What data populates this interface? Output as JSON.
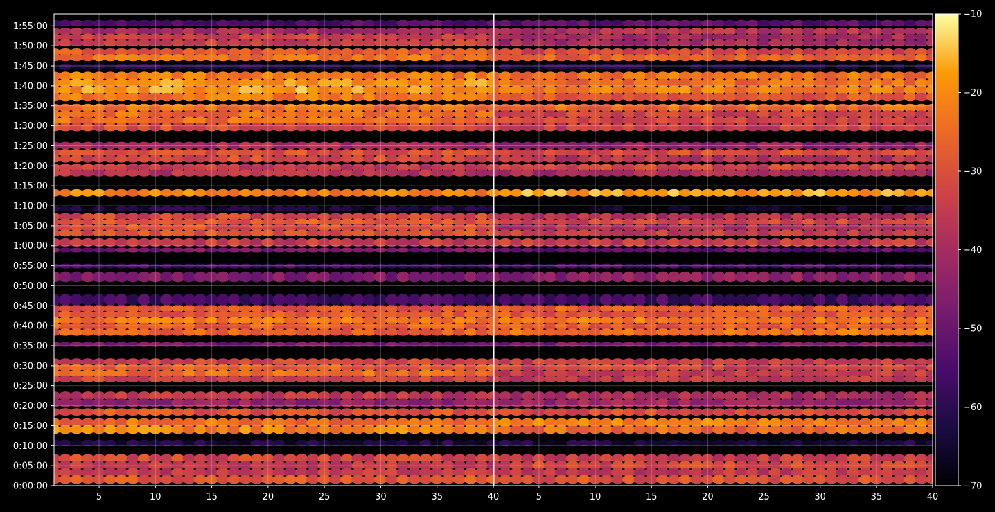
{
  "chart_data": {
    "type": "heatmap",
    "colormap": "inferno",
    "panels": 2,
    "x": {
      "range": [
        1,
        40
      ],
      "ticks": [
        5,
        10,
        15,
        20,
        25,
        30,
        35,
        40
      ],
      "tick_labels": [
        "5",
        "10",
        "15",
        "20",
        "25",
        "30",
        "35",
        "40"
      ]
    },
    "y": {
      "range_seconds": [
        0,
        7080
      ],
      "ticks": [
        0,
        300,
        600,
        900,
        1200,
        1500,
        1800,
        2100,
        2400,
        2700,
        3000,
        3300,
        3600,
        3900,
        4200,
        4500,
        4800,
        5100,
        5400,
        5700,
        6000,
        6300,
        6600,
        6900
      ],
      "tick_labels": [
        "0:00:00",
        "0:05:00",
        "0:10:00",
        "0:15:00",
        "0:20:00",
        "0:25:00",
        "0:30:00",
        "0:35:00",
        "0:40:00",
        "0:45:00",
        "0:50:00",
        "0:55:00",
        "1:00:00",
        "1:05:00",
        "1:10:00",
        "1:15:00",
        "1:20:00",
        "1:25:00",
        "1:30:00",
        "1:35:00",
        "1:40:00",
        "1:45:00",
        "1:50:00",
        "1:55:00"
      ]
    },
    "colorbar": {
      "range": [
        -70,
        -10
      ],
      "ticks": [
        -10,
        -20,
        -30,
        -40,
        -50,
        -60,
        -70
      ],
      "tick_labels": [
        "−10",
        "−20",
        "−30",
        "−40",
        "−50",
        "−60",
        "−70"
      ]
    },
    "grid": true,
    "bands_seconds": [
      {
        "y0": 40,
        "y1": 460,
        "level": -33
      },
      {
        "y0": 600,
        "y1": 680,
        "level": -58
      },
      {
        "y0": 790,
        "y1": 1000,
        "level": -24
      },
      {
        "y0": 1060,
        "y1": 1150,
        "level": -27
      },
      {
        "y0": 1190,
        "y1": 1400,
        "level": -40
      },
      {
        "y0": 1560,
        "y1": 1900,
        "level": -29
      },
      {
        "y0": 2100,
        "y1": 2140,
        "level": -45
      },
      {
        "y0": 2260,
        "y1": 2700,
        "level": -25
      },
      {
        "y0": 2720,
        "y1": 2860,
        "level": -55
      },
      {
        "y0": 3070,
        "y1": 3200,
        "level": -46
      },
      {
        "y0": 3270,
        "y1": 3320,
        "level": -52
      },
      {
        "y0": 3510,
        "y1": 3560,
        "level": -45
      },
      {
        "y0": 3600,
        "y1": 3700,
        "level": -33
      },
      {
        "y0": 3750,
        "y1": 4080,
        "level": -32
      },
      {
        "y0": 4130,
        "y1": 4180,
        "level": -62
      },
      {
        "y0": 4350,
        "y1": 4440,
        "level": -20
      },
      {
        "y0": 4650,
        "y1": 4820,
        "level": -33
      },
      {
        "y0": 4860,
        "y1": 5040,
        "level": -32
      },
      {
        "y0": 5060,
        "y1": 5150,
        "level": -42
      },
      {
        "y0": 5330,
        "y1": 5720,
        "level": -27
      },
      {
        "y0": 5780,
        "y1": 6200,
        "level": -23
      },
      {
        "y0": 6250,
        "y1": 6320,
        "level": -62
      },
      {
        "y0": 6380,
        "y1": 6550,
        "level": -27
      },
      {
        "y0": 6600,
        "y1": 6860,
        "level": -36
      },
      {
        "y0": 6900,
        "y1": 6980,
        "level": -55
      }
    ]
  }
}
